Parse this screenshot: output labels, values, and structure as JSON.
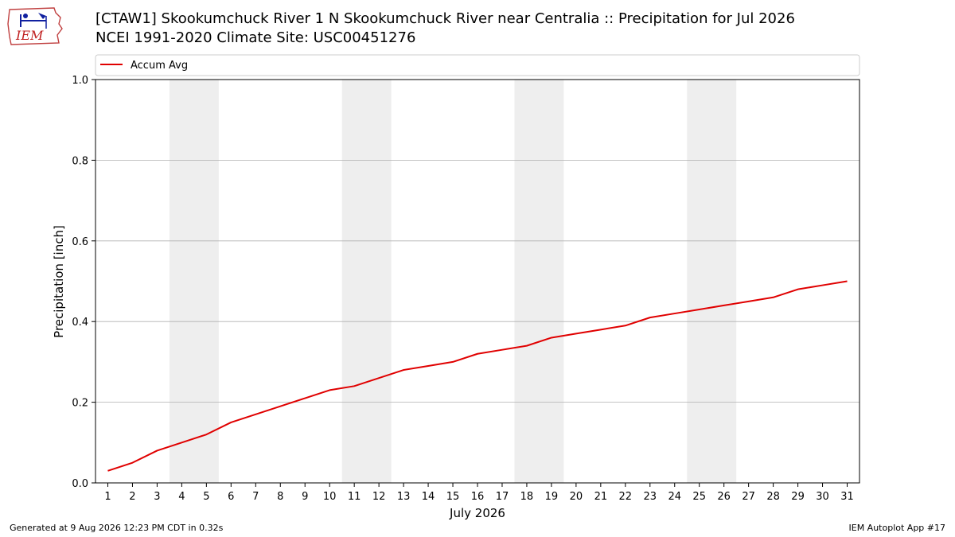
{
  "header": {
    "title_line1": "[CTAW1] Skookumchuck River 1 N Skookumchuck River near Centralia :: Precipitation for Jul 2026",
    "title_line2": "NCEI 1991-2020 Climate Site: USC00451276"
  },
  "logo": {
    "text": "IEM",
    "icon": "iem-iowa-logo-icon"
  },
  "footer": {
    "generated": "Generated at 9 Aug 2026 12:23 PM CDT in 0.32s",
    "app": "IEM Autoplot App #17"
  },
  "colors": {
    "line": "#e00000",
    "weekend_band": "#eeeeee",
    "grid": "#b0b0b0"
  },
  "chart_data": {
    "type": "line",
    "title": "[CTAW1] Skookumchuck River 1 N Skookumchuck River near Centralia :: Precipitation for Jul 2026",
    "xlabel": "July 2026",
    "ylabel": "Precipitation [inch]",
    "x": [
      1,
      2,
      3,
      4,
      5,
      6,
      7,
      8,
      9,
      10,
      11,
      12,
      13,
      14,
      15,
      16,
      17,
      18,
      19,
      20,
      21,
      22,
      23,
      24,
      25,
      26,
      27,
      28,
      29,
      30,
      31
    ],
    "xticks": [
      "1",
      "2",
      "3",
      "4",
      "5",
      "6",
      "7",
      "8",
      "9",
      "10",
      "11",
      "12",
      "13",
      "14",
      "15",
      "16",
      "17",
      "18",
      "19",
      "20",
      "21",
      "22",
      "23",
      "24",
      "25",
      "26",
      "27",
      "28",
      "29",
      "30",
      "31"
    ],
    "xlim": [
      0.5,
      31.5
    ],
    "ylim": [
      0.0,
      1.0
    ],
    "yticks": [
      "0.0",
      "0.2",
      "0.4",
      "0.6",
      "0.8",
      "1.0"
    ],
    "grid": "horizontal",
    "legend": "top",
    "shaded_weekends": [
      [
        4,
        5
      ],
      [
        11,
        12
      ],
      [
        18,
        19
      ],
      [
        25,
        26
      ]
    ],
    "series": [
      {
        "name": "Accum Avg",
        "color": "#e00000",
        "values": [
          0.03,
          0.05,
          0.08,
          0.1,
          0.12,
          0.15,
          0.17,
          0.19,
          0.21,
          0.23,
          0.24,
          0.26,
          0.28,
          0.29,
          0.3,
          0.32,
          0.33,
          0.34,
          0.36,
          0.37,
          0.38,
          0.39,
          0.41,
          0.42,
          0.43,
          0.44,
          0.45,
          0.46,
          0.48,
          0.49,
          0.5
        ]
      }
    ]
  }
}
